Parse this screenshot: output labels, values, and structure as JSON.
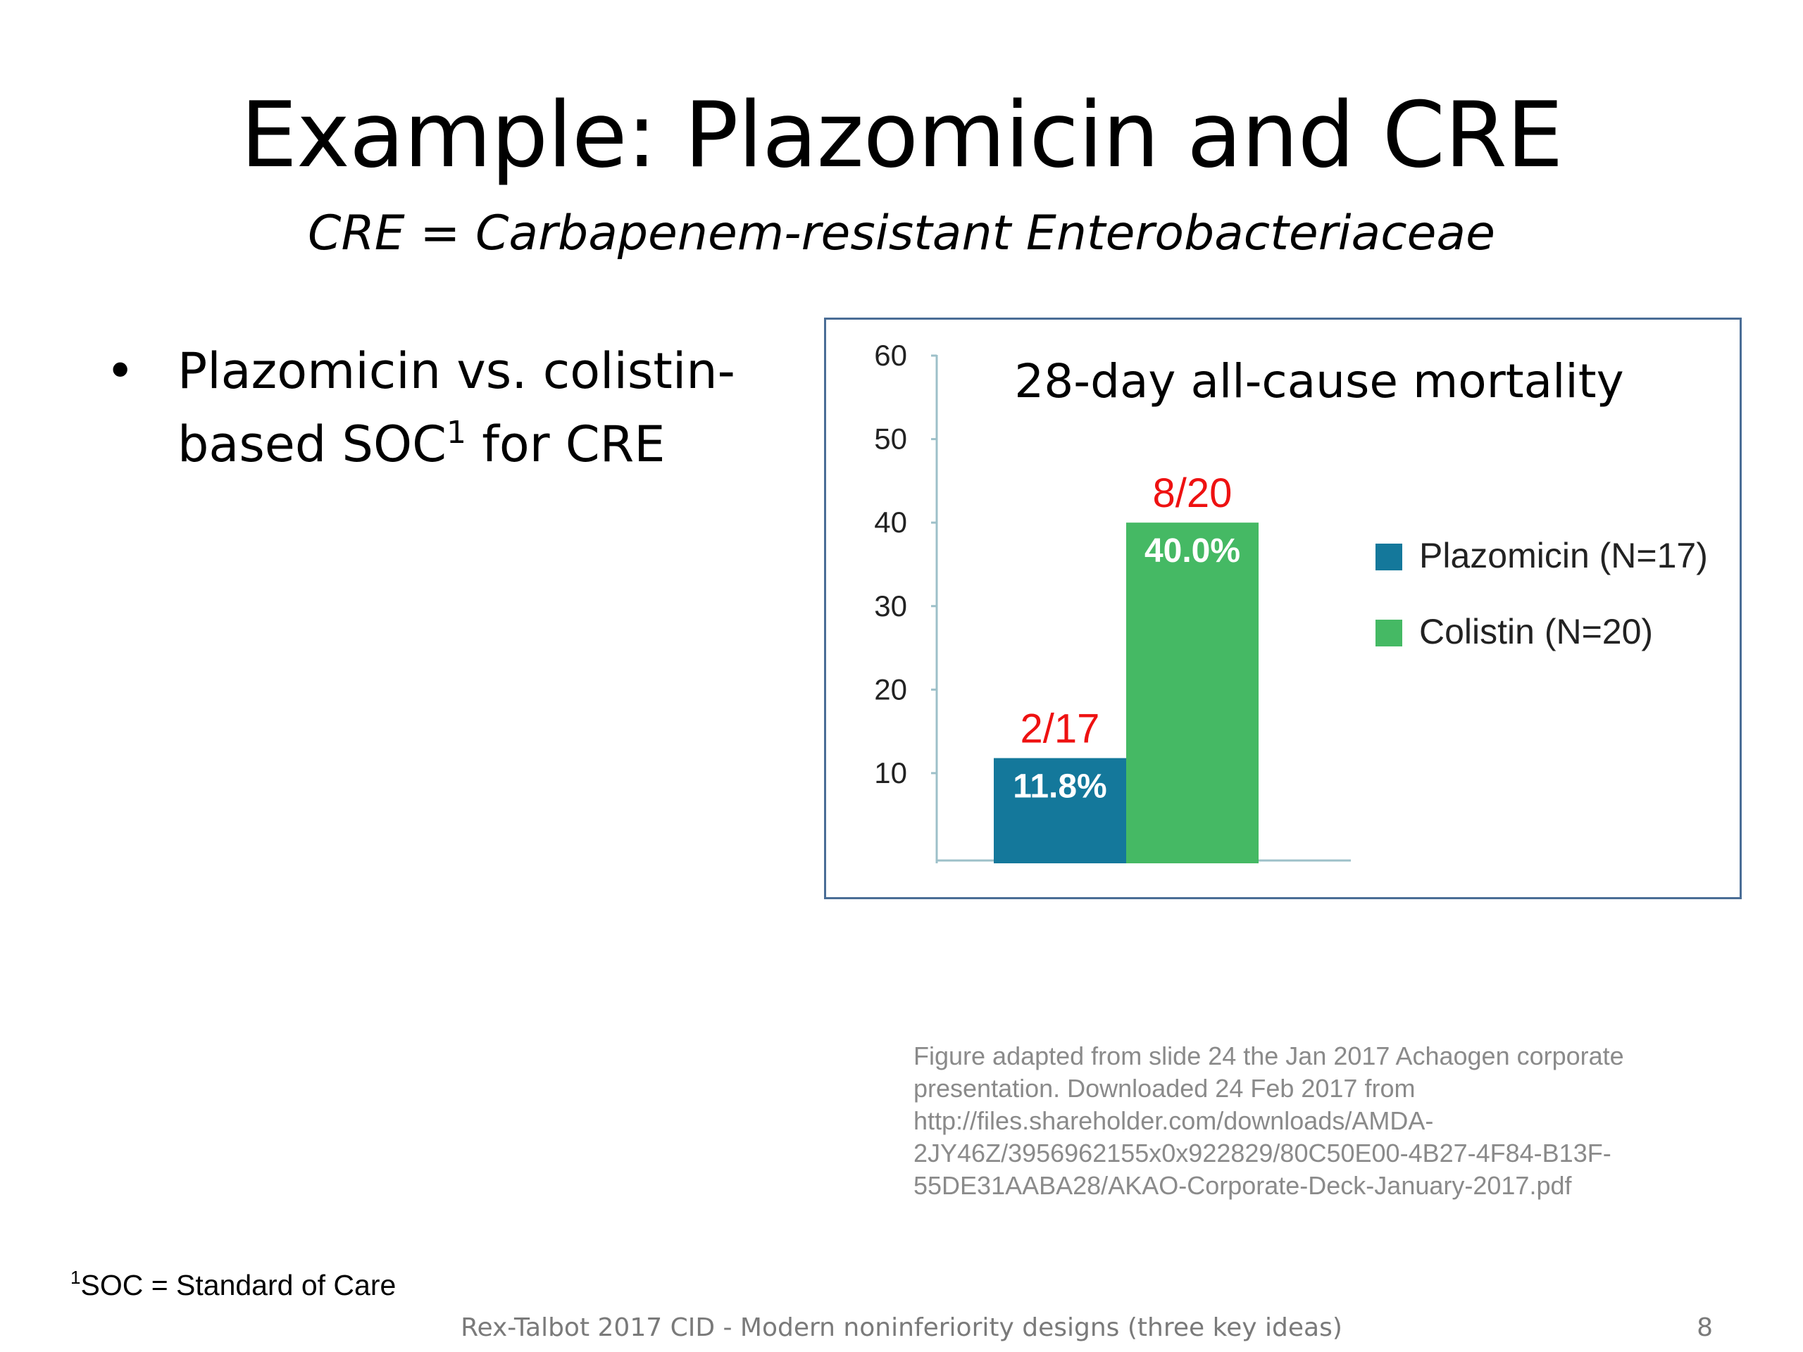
{
  "slide": {
    "title": "Example: Plazomicin and CRE",
    "subtitle": "CRE = Carbapenem-resistant Enterobacteriaceae",
    "bullet": {
      "symbol": "•",
      "line1": "Plazomicin vs. colistin-",
      "line2_before": "based SOC",
      "line2_sup": "1",
      "line2_after": " for CRE"
    },
    "source_note": "Figure adapted from slide 24 the Jan 2017 Achaogen corporate presentation. Downloaded 24 Feb 2017 from http://files.shareholder.com/downloads/AMDA-2JY46Z/3956962155x0x922829/80C50E00-4B27-4F84-B13F-55DE31AABA28/AKAO-Corporate-Deck-January-2017.pdf",
    "footnote_sup": "1",
    "footnote_text": "SOC = Standard of Care",
    "footer": "Rex-Talbot 2017 CID - Modern noninferiority designs (three key ideas)",
    "page_number": "8"
  },
  "chart_data": {
    "type": "bar",
    "title": "28-day all-cause mortality",
    "xlabel": "",
    "ylabel": "",
    "ylim": [
      0,
      60
    ],
    "yticks": [
      10,
      20,
      30,
      40,
      50,
      60
    ],
    "grid": false,
    "legend_position": "right",
    "series": [
      {
        "name": "Plazomicin (N=17)",
        "value": 11.8,
        "value_label": "11.8%",
        "fraction_label": "2/17",
        "color": "#14789b"
      },
      {
        "name": "Colistin (N=20)",
        "value": 40.0,
        "value_label": "40.0%",
        "fraction_label": "8/20",
        "color": "#45b964"
      }
    ],
    "fraction_label_color": "#ee1111",
    "value_label_color": "#ffffff",
    "axis_color": "#9dc0c9"
  }
}
